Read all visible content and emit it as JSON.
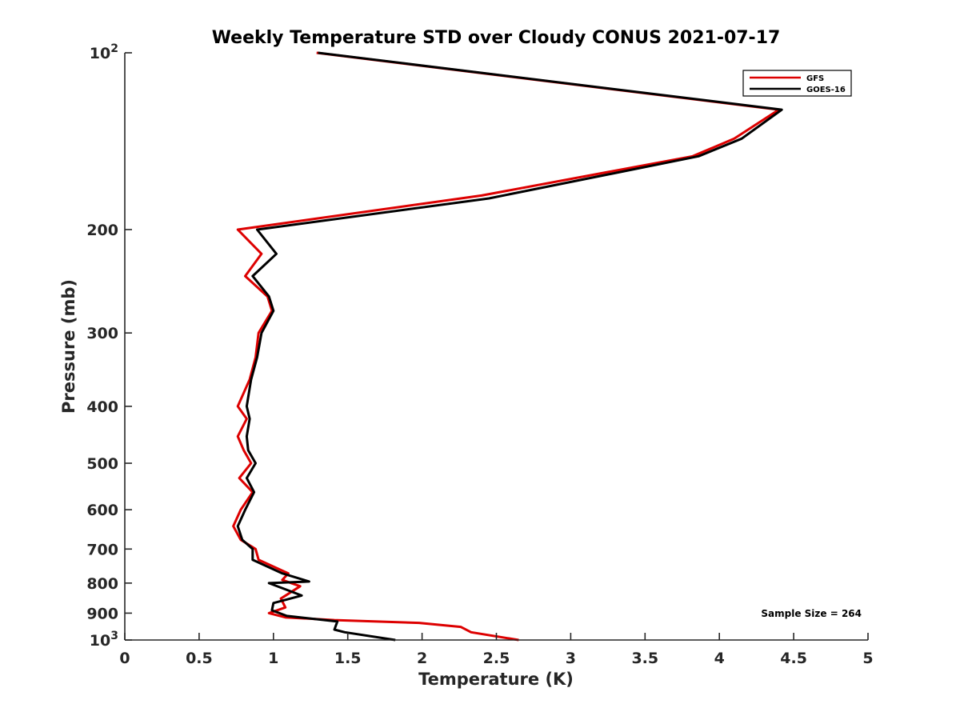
{
  "chart_data": {
    "type": "line",
    "title": "Weekly Temperature STD over Cloudy CONUS 2021-07-17",
    "xlabel": "Temperature (K)",
    "ylabel": "Pressure (mb)",
    "xlim": [
      0,
      5
    ],
    "ylim": [
      100,
      1000
    ],
    "y_scale": "log",
    "y_reversed": true,
    "x_ticks": [
      0,
      0.5,
      1,
      1.5,
      2,
      2.5,
      3,
      3.5,
      4,
      4.5,
      5
    ],
    "x_tick_labels": [
      "0",
      "0.5",
      "1",
      "1.5",
      "2",
      "2.5",
      "3",
      "3.5",
      "4",
      "4.5",
      "5"
    ],
    "y_ticks": [
      100,
      200,
      300,
      400,
      500,
      600,
      700,
      800,
      900,
      1000
    ],
    "y_tick_labels": [
      {
        "base": "10",
        "exp": "2"
      },
      {
        "base": "200",
        "exp": ""
      },
      {
        "base": "300",
        "exp": ""
      },
      {
        "base": "400",
        "exp": ""
      },
      {
        "base": "500",
        "exp": ""
      },
      {
        "base": "600",
        "exp": ""
      },
      {
        "base": "700",
        "exp": ""
      },
      {
        "base": "800",
        "exp": ""
      },
      {
        "base": "900",
        "exp": ""
      },
      {
        "base": "10",
        "exp": "3"
      }
    ],
    "grid": false,
    "legend_position": "top-right",
    "annotation": "Sample Size = 264",
    "series": [
      {
        "name": "GFS",
        "color": "#dd0000",
        "points": [
          [
            1.29,
            100
          ],
          [
            4.4,
            125
          ],
          [
            4.1,
            140
          ],
          [
            3.82,
            150
          ],
          [
            2.4,
            175
          ],
          [
            0.76,
            200
          ],
          [
            0.92,
            220
          ],
          [
            0.81,
            240
          ],
          [
            0.96,
            260
          ],
          [
            0.99,
            275
          ],
          [
            0.9,
            300
          ],
          [
            0.88,
            330
          ],
          [
            0.84,
            360
          ],
          [
            0.76,
            400
          ],
          [
            0.82,
            420
          ],
          [
            0.76,
            450
          ],
          [
            0.8,
            475
          ],
          [
            0.85,
            500
          ],
          [
            0.77,
            530
          ],
          [
            0.86,
            560
          ],
          [
            0.78,
            600
          ],
          [
            0.73,
            640
          ],
          [
            0.78,
            675
          ],
          [
            0.88,
            700
          ],
          [
            0.9,
            730
          ],
          [
            1.1,
            770
          ],
          [
            1.06,
            790
          ],
          [
            1.18,
            810
          ],
          [
            1.05,
            850
          ],
          [
            1.08,
            880
          ],
          [
            0.97,
            900
          ],
          [
            1.08,
            915
          ],
          [
            1.41,
            925
          ],
          [
            1.98,
            935
          ],
          [
            2.26,
            950
          ],
          [
            2.33,
            970
          ],
          [
            2.65,
            1000
          ]
        ]
      },
      {
        "name": "GOES-16",
        "color": "#000000",
        "points": [
          [
            1.3,
            100
          ],
          [
            4.42,
            125
          ],
          [
            4.15,
            140
          ],
          [
            3.86,
            150
          ],
          [
            2.45,
            177
          ],
          [
            0.89,
            200
          ],
          [
            1.02,
            220
          ],
          [
            0.86,
            240
          ],
          [
            0.97,
            260
          ],
          [
            1.0,
            275
          ],
          [
            0.92,
            300
          ],
          [
            0.89,
            330
          ],
          [
            0.85,
            360
          ],
          [
            0.82,
            400
          ],
          [
            0.84,
            420
          ],
          [
            0.82,
            450
          ],
          [
            0.83,
            475
          ],
          [
            0.88,
            500
          ],
          [
            0.82,
            530
          ],
          [
            0.87,
            560
          ],
          [
            0.81,
            600
          ],
          [
            0.76,
            640
          ],
          [
            0.79,
            675
          ],
          [
            0.86,
            700
          ],
          [
            0.86,
            730
          ],
          [
            1.06,
            770
          ],
          [
            1.24,
            795
          ],
          [
            0.97,
            800
          ],
          [
            1.19,
            840
          ],
          [
            1.0,
            865
          ],
          [
            0.99,
            890
          ],
          [
            1.09,
            910
          ],
          [
            1.43,
            930
          ],
          [
            1.41,
            960
          ],
          [
            1.48,
            970
          ],
          [
            1.82,
            1000
          ]
        ]
      }
    ]
  }
}
